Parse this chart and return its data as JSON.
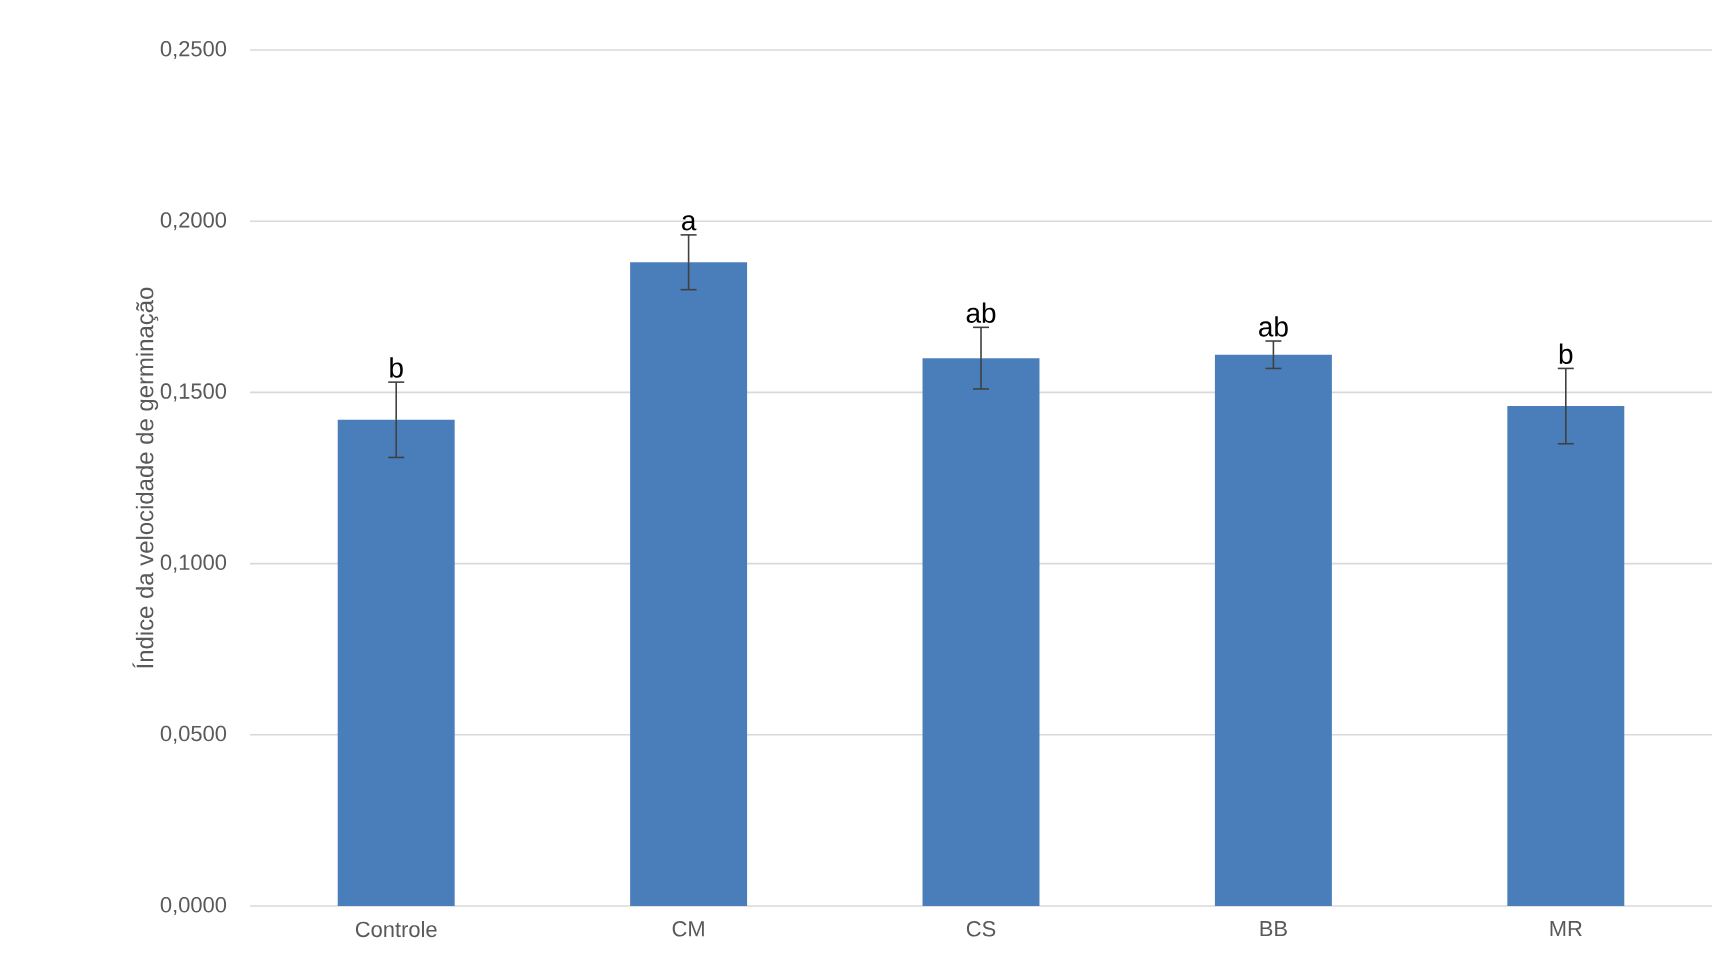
{
  "chart_data": {
    "type": "bar",
    "ylabel": "Índice da velocidade de germinação",
    "categories": [
      "Controle",
      "CM",
      "CS",
      "BB",
      "MR"
    ],
    "values": [
      0.142,
      0.188,
      0.16,
      0.161,
      0.146
    ],
    "errors": [
      0.011,
      0.008,
      0.009,
      0.004,
      0.011
    ],
    "color": "#4a7ebb",
    "ylim": [
      0,
      0.25
    ],
    "yticks": [
      {
        "value": 0,
        "label": "0,0000"
      },
      {
        "value": 0.05,
        "label": "0,0500"
      },
      {
        "value": 0.1,
        "label": "0,1000"
      },
      {
        "value": 0.15,
        "label": "0,1500"
      },
      {
        "value": 0.2,
        "label": "0,2000"
      },
      {
        "value": 0.25,
        "label": "0,2500"
      }
    ],
    "grid": "y",
    "annotations": [
      {
        "text": "b",
        "x": "Controle",
        "y": 0.153
      },
      {
        "text": "a",
        "x": "CM",
        "y": 0.196
      },
      {
        "text": "ab",
        "x": "CS",
        "y": 0.169
      },
      {
        "text": "ab",
        "x": "BB",
        "y": 0.165
      },
      {
        "text": "b",
        "x": "MR",
        "y": 0.157
      }
    ]
  }
}
